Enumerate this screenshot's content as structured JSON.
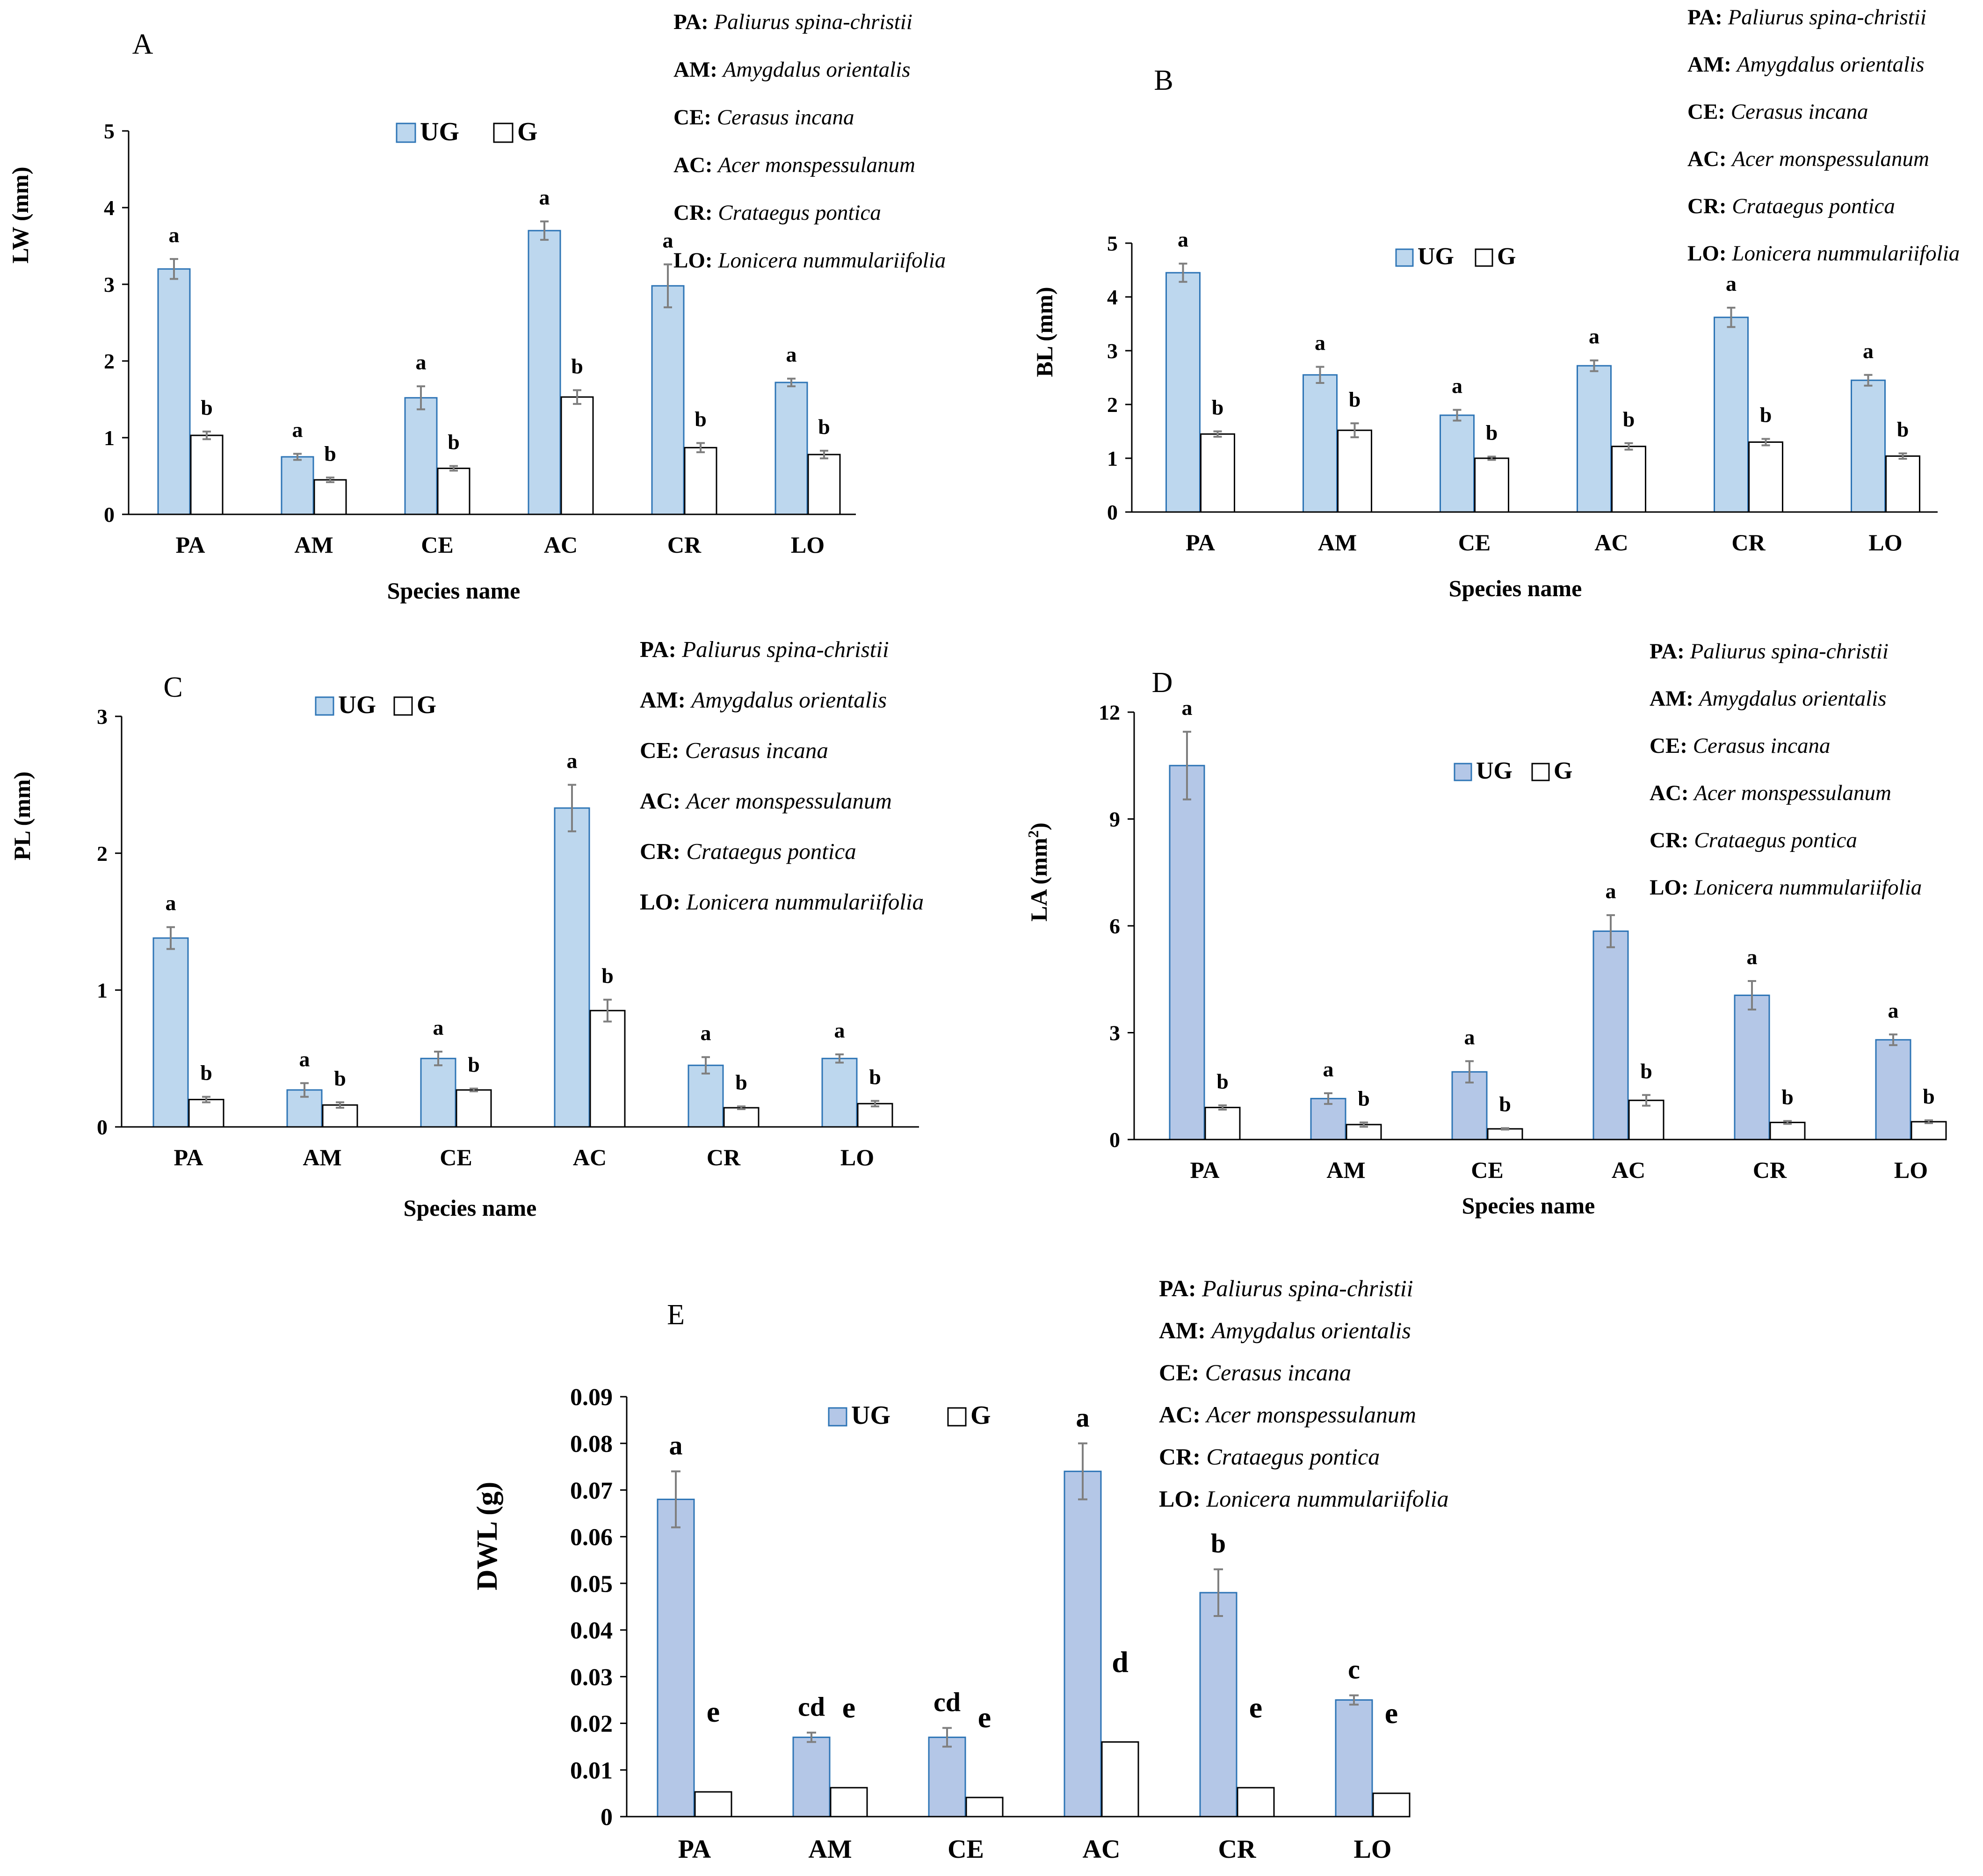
{
  "species_key": [
    {
      "abbr": "PA",
      "name": "Paliurus spina-christii"
    },
    {
      "abbr": "AM",
      "name": "Amygdalus orientalis"
    },
    {
      "abbr": "CE",
      "name": "Cerasus incana"
    },
    {
      "abbr": "AC",
      "name": "Acer monspessulanum"
    },
    {
      "abbr": "CR",
      "name": "Crataegus pontica"
    },
    {
      "abbr": "LO",
      "name": "Lonicera nummulariifolia"
    }
  ],
  "colors": {
    "ug_light_fill": "#bdd7ee",
    "ug_dark_fill": "#b4c7e7",
    "ug_stroke": "#2e75b6",
    "g_fill": "#ffffff",
    "g_stroke": "#000000",
    "error_bar": "#7f7f7f",
    "axis": "#000000"
  },
  "chart_data": [
    {
      "id": "A",
      "panel": "A",
      "type": "bar",
      "categories": [
        "PA",
        "AM",
        "CE",
        "AC",
        "CR",
        "LO"
      ],
      "series": [
        {
          "name": "UG",
          "values": [
            3.2,
            0.75,
            1.52,
            3.7,
            2.98,
            1.72
          ],
          "errors": [
            0.13,
            0.04,
            0.15,
            0.12,
            0.28,
            0.05
          ],
          "letters": [
            "a",
            "a",
            "a",
            "a",
            "a",
            "a"
          ]
        },
        {
          "name": "G",
          "values": [
            1.03,
            0.45,
            0.6,
            1.53,
            0.87,
            0.78
          ],
          "errors": [
            0.05,
            0.03,
            0.03,
            0.09,
            0.06,
            0.05
          ],
          "letters": [
            "b",
            "b",
            "b",
            "b",
            "b",
            "b"
          ]
        }
      ],
      "ylabel": "LW (mm)",
      "xlabel": "Species name",
      "ylim": [
        0,
        5
      ],
      "yticks": [
        "0",
        "1",
        "2",
        "3",
        "4",
        "5"
      ],
      "ug_style": "light"
    },
    {
      "id": "B",
      "panel": "B",
      "type": "bar",
      "categories": [
        "PA",
        "AM",
        "CE",
        "AC",
        "CR",
        "LO"
      ],
      "series": [
        {
          "name": "UG",
          "values": [
            4.45,
            2.55,
            1.8,
            2.72,
            3.62,
            2.45
          ],
          "errors": [
            0.17,
            0.15,
            0.1,
            0.1,
            0.18,
            0.1
          ],
          "letters": [
            "a",
            "a",
            "a",
            "a",
            "a",
            "a"
          ]
        },
        {
          "name": "G",
          "values": [
            1.45,
            1.52,
            1.0,
            1.22,
            1.3,
            1.04
          ],
          "errors": [
            0.05,
            0.13,
            0.03,
            0.06,
            0.06,
            0.05
          ],
          "letters": [
            "b",
            "b",
            "b",
            "b",
            "b",
            "b"
          ]
        }
      ],
      "ylabel": "BL (mm)",
      "xlabel": "Species name",
      "ylim": [
        0,
        5
      ],
      "yticks": [
        "0",
        "1",
        "2",
        "3",
        "4",
        "5"
      ],
      "ug_style": "light"
    },
    {
      "id": "C",
      "panel": "C",
      "type": "bar",
      "categories": [
        "PA",
        "AM",
        "CE",
        "AC",
        "CR",
        "LO"
      ],
      "series": [
        {
          "name": "UG",
          "values": [
            1.38,
            0.27,
            0.5,
            2.33,
            0.45,
            0.5
          ],
          "errors": [
            0.08,
            0.05,
            0.05,
            0.17,
            0.06,
            0.03
          ],
          "letters": [
            "a",
            "a",
            "a",
            "a",
            "a",
            "a"
          ]
        },
        {
          "name": "G",
          "values": [
            0.2,
            0.16,
            0.27,
            0.85,
            0.14,
            0.17
          ],
          "errors": [
            0.02,
            0.02,
            0.01,
            0.08,
            0.01,
            0.02
          ],
          "letters": [
            "b",
            "b",
            "b",
            "b",
            "b",
            "b"
          ]
        }
      ],
      "ylabel": "PL (mm)",
      "xlabel": "Species name",
      "ylim": [
        0,
        3
      ],
      "yticks": [
        "0",
        "1",
        "2",
        "3"
      ],
      "ug_style": "light"
    },
    {
      "id": "D",
      "panel": "D",
      "type": "bar",
      "categories": [
        "PA",
        "AM",
        "CE",
        "AC",
        "CR",
        "LO"
      ],
      "series": [
        {
          "name": "UG",
          "values": [
            10.5,
            1.15,
            1.9,
            5.85,
            4.05,
            2.8
          ],
          "errors": [
            0.95,
            0.15,
            0.3,
            0.45,
            0.4,
            0.15
          ],
          "letters": [
            "a",
            "a",
            "a",
            "a",
            "a",
            "a"
          ]
        },
        {
          "name": "G",
          "values": [
            0.9,
            0.42,
            0.3,
            1.1,
            0.48,
            0.5
          ],
          "errors": [
            0.06,
            0.06,
            0.02,
            0.15,
            0.04,
            0.04
          ],
          "letters": [
            "b",
            "b",
            "b",
            "b",
            "b",
            "b"
          ]
        }
      ],
      "ylabel": "LA (mm",
      "ylabel_sup": "2",
      "ylabel_close": ")",
      "xlabel": "Species name",
      "ylim": [
        0,
        12
      ],
      "yticks": [
        "0",
        "3",
        "6",
        "9",
        "12"
      ],
      "ug_style": "dark"
    },
    {
      "id": "E",
      "panel": "E",
      "type": "bar",
      "categories": [
        "PA",
        "AM",
        "CE",
        "AC",
        "CR",
        "LO"
      ],
      "series": [
        {
          "name": "UG",
          "values": [
            0.068,
            0.017,
            0.017,
            0.074,
            0.048,
            0.025
          ],
          "errors": [
            0.006,
            0.001,
            0.002,
            0.006,
            0.005,
            0.001
          ],
          "letters": [
            "a",
            "cd",
            "cd",
            "a",
            "b",
            "c"
          ]
        },
        {
          "name": "G",
          "values": [
            0.0053,
            0.0062,
            0.0041,
            0.016,
            0.0062,
            0.005
          ],
          "errors": [
            0,
            0,
            0,
            0,
            0,
            0
          ],
          "letters": [
            "e",
            "e",
            "e",
            "d",
            "e",
            "e"
          ]
        }
      ],
      "ylabel": "DWL (g)",
      "xlabel": "",
      "ylim": [
        0,
        0.09
      ],
      "yticks": [
        "0",
        "0.01",
        "0.02",
        "0.03",
        "0.04",
        "0.05",
        "0.06",
        "0.07",
        "0.08",
        "0.09"
      ],
      "ug_style": "dark"
    }
  ]
}
